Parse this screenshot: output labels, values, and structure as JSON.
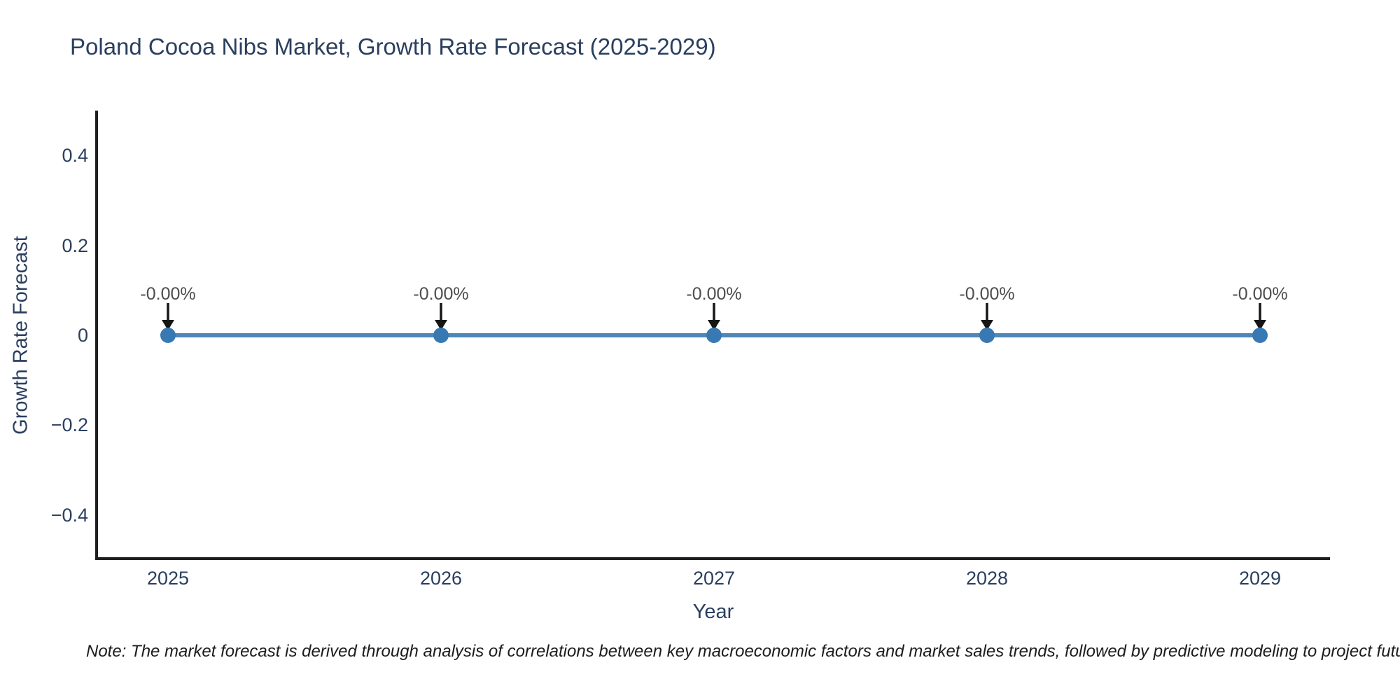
{
  "chart_data": {
    "type": "line",
    "title": "Poland Cocoa Nibs Market, Growth Rate Forecast (2025-2029)",
    "xlabel": "Year",
    "ylabel": "Growth Rate Forecast",
    "categories": [
      "2025",
      "2026",
      "2027",
      "2028",
      "2029"
    ],
    "values": [
      0,
      0,
      0,
      0,
      0
    ],
    "point_labels": [
      "-0.00%",
      "-0.00%",
      "-0.00%",
      "-0.00%",
      "-0.00%"
    ],
    "yticks": [
      0.4,
      0.2,
      0,
      -0.2,
      -0.4
    ],
    "ytick_labels": [
      "0.4",
      "0.2",
      "0",
      "−0.2",
      "−0.4"
    ],
    "ylim": [
      -0.5,
      0.5
    ],
    "grid": false,
    "legend": false,
    "note": "Note: The market forecast is derived through analysis of correlations between key macroeconomic factors and market sales trends, followed by predictive modeling to project future sa",
    "colors": {
      "line": "#4e86b8",
      "marker": "#3879b4",
      "axis": "#1f1f1f",
      "text": "#2a3f5f",
      "annotation_text": "#4d4d4d",
      "arrow": "#151515",
      "background": "#ffffff"
    }
  }
}
